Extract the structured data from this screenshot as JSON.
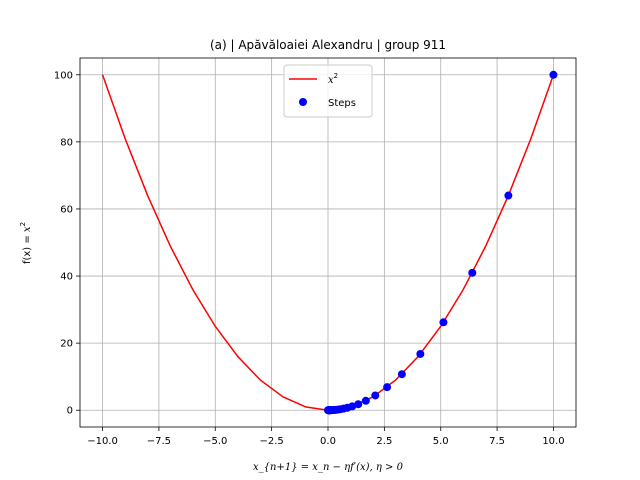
{
  "chart_data": {
    "type": "line",
    "title": "(a) | Apăvăloaiei Alexandru | group 911",
    "xlim": [
      -11,
      11
    ],
    "ylim": [
      -5,
      105
    ],
    "xticks": [
      -10,
      -7.5,
      -5,
      -2.5,
      0,
      2.5,
      5,
      7.5,
      10
    ],
    "xtick_labels": [
      "−10.0",
      "−7.5",
      "−5.0",
      "−2.5",
      "0.0",
      "2.5",
      "5.0",
      "7.5",
      "10.0"
    ],
    "yticks": [
      0,
      20,
      40,
      60,
      80,
      100
    ],
    "ytick_labels": [
      "0",
      "20",
      "40",
      "60",
      "80",
      "100"
    ],
    "grid": true,
    "legend_position": "top-center",
    "series": [
      {
        "name": "x^2",
        "kind": "line",
        "color": "#ff0000",
        "x": [
          -10,
          -9,
          -8,
          -7,
          -6,
          -5,
          -4,
          -3,
          -2,
          -1,
          0,
          1,
          2,
          3,
          4,
          5,
          6,
          7,
          8,
          9,
          10
        ],
        "y": [
          100,
          81,
          64,
          49,
          36,
          25,
          16,
          9,
          4,
          1,
          0,
          1,
          4,
          9,
          16,
          25,
          36,
          49,
          64,
          81,
          100
        ]
      },
      {
        "name": "Steps",
        "kind": "scatter",
        "color": "#0000ff",
        "x": [
          10.0,
          8.0,
          6.4,
          5.12,
          4.096,
          3.277,
          2.621,
          2.097,
          1.678,
          1.342,
          1.074,
          0.859,
          0.687,
          0.55,
          0.44,
          0.352,
          0.281,
          0.225,
          0.18,
          0.144,
          0.115,
          0.092,
          0.074,
          0.059,
          0.047,
          0.038,
          0.03,
          0.024,
          0.019,
          0.015,
          0.0
        ],
        "y": [
          100.0,
          64.0,
          40.96,
          26.21,
          16.78,
          10.74,
          6.87,
          4.4,
          2.81,
          1.8,
          1.15,
          0.74,
          0.47,
          0.3,
          0.19,
          0.12,
          0.08,
          0.05,
          0.03,
          0.02,
          0.01,
          0.01,
          0.01,
          0.0,
          0.0,
          0.0,
          0.0,
          0.0,
          0.0,
          0.0,
          0.0
        ]
      }
    ]
  },
  "legend": {
    "line_label_base": "x",
    "line_label_sup": "2",
    "scatter_label": "Steps"
  },
  "axis_labels": {
    "ylabel_prefix": "f(x) = ",
    "ylabel_base": "x",
    "ylabel_sup": "2",
    "xlabel": "x_{n+1} = x_n − ηf′(x), η > 0"
  }
}
